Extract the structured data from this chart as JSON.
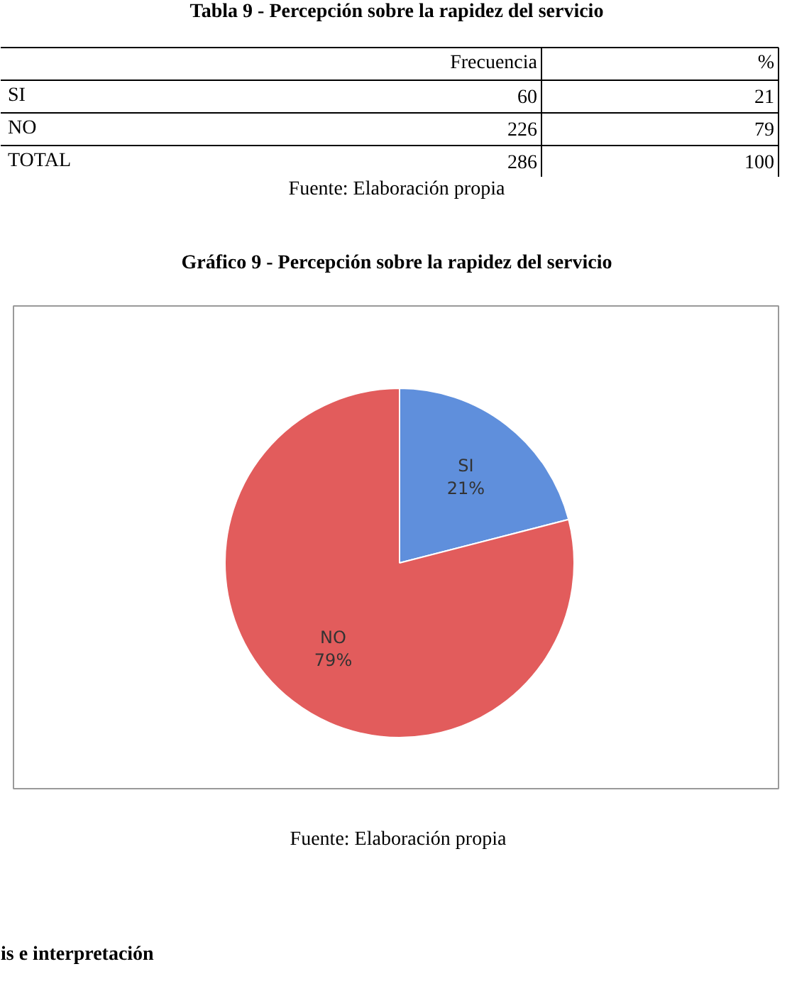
{
  "chart_data": {
    "type": "pie",
    "title": "Gráfico 9 - Percepción sobre la rapidez del servicio",
    "categories": [
      "SI",
      "NO"
    ],
    "values": [
      21,
      79
    ],
    "colors": [
      "#5f8fdc",
      "#e25c5c"
    ],
    "value_labels": [
      "21%",
      "79%"
    ],
    "annotations": [
      "Tabla 9 - Percepción sobre la rapidez del servicio",
      "Frecuencia",
      "%",
      "SI",
      "60",
      "21",
      "NO",
      "226",
      "79",
      "TOTAL",
      "286",
      "100",
      "Fuente: Elaboración propia",
      "Fuente: Elaboración propia",
      "is e interpretación"
    ]
  }
}
